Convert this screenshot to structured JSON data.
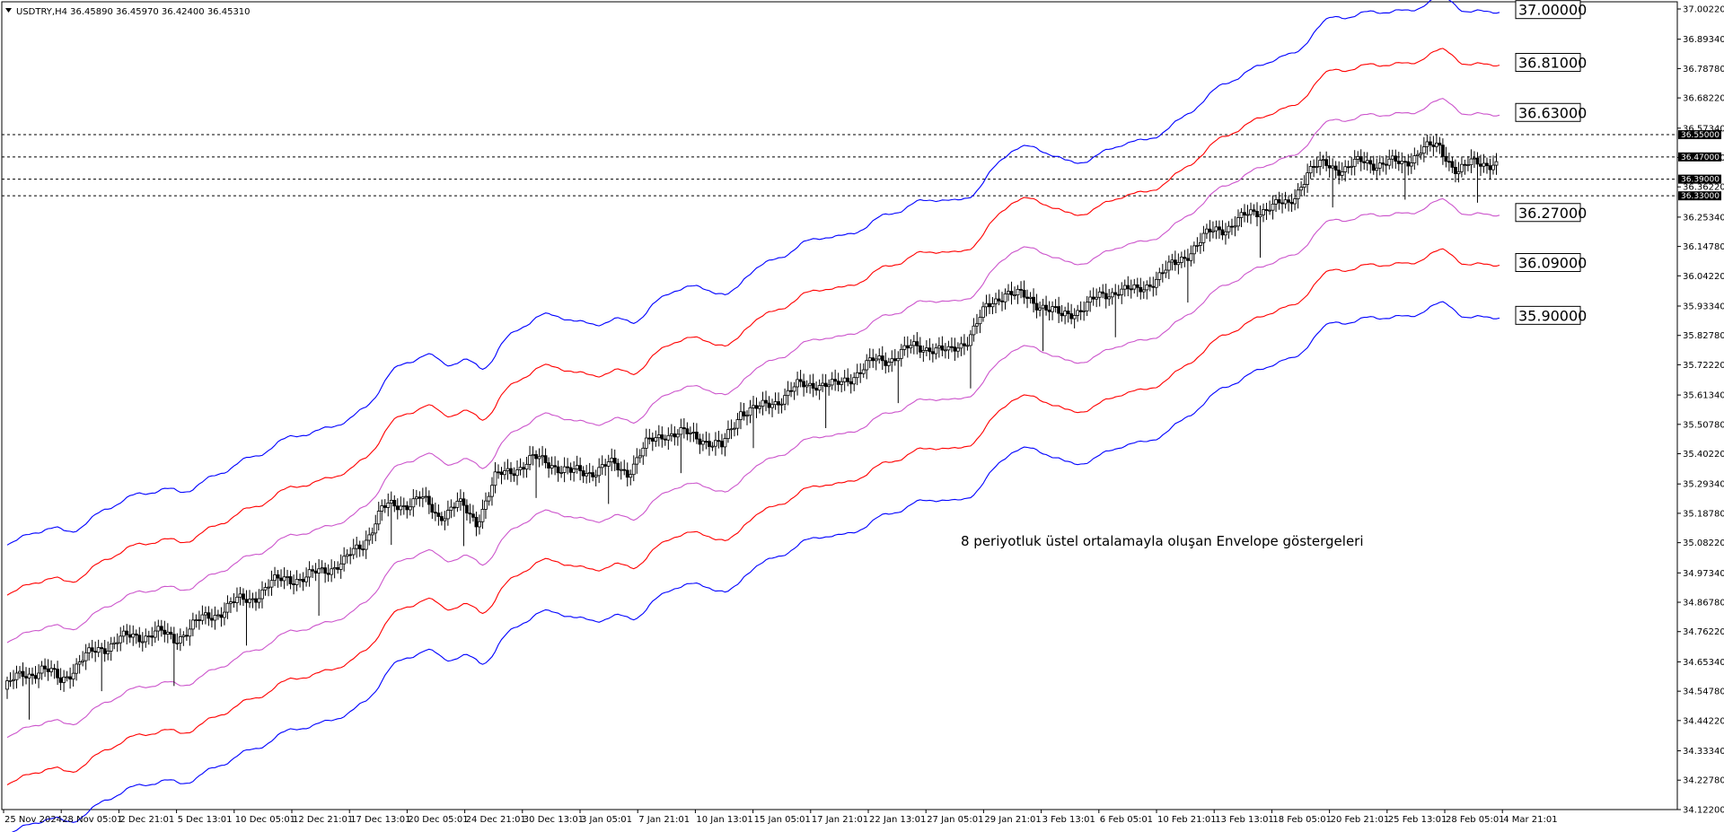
{
  "window": {
    "title": "USDTRY,H4  36.45890 36.45970 36.42400 36.45310"
  },
  "chart_data": {
    "type": "candlestick",
    "symbol": "USDTRY",
    "timeframe": "H4",
    "ylim": [
      34.122,
      37.0022
    ],
    "ytick_labels": [
      "37.00220",
      "36.89340",
      "36.78780",
      "36.68220",
      "36.57340",
      "36.46780",
      "36.36220",
      "36.25340",
      "36.14780",
      "36.04220",
      "35.93340",
      "35.82780",
      "35.72220",
      "35.61340",
      "35.50780",
      "35.40220",
      "35.29340",
      "35.18780",
      "35.08220",
      "34.97340",
      "34.86780",
      "34.76220",
      "34.65340",
      "34.54780",
      "34.44220",
      "34.33340",
      "34.22780",
      "34.12200"
    ],
    "xtick_labels": [
      "25 Nov 2024",
      "28 Nov 05:01",
      "2 Dec 21:01",
      "5 Dec 13:01",
      "10 Dec 05:01",
      "12 Dec 21:01",
      "17 Dec 13:01",
      "20 Dec 05:01",
      "24 Dec 21:01",
      "30 Dec 13:01",
      "3 Jan 05:01",
      "7 Jan 21:01",
      "10 Jan 13:01",
      "15 Jan 05:01",
      "17 Jan 21:01",
      "22 Jan 13:01",
      "27 Jan 05:01",
      "29 Jan 21:01",
      "3 Feb 13:01",
      "6 Feb 05:01",
      "10 Feb 21:01",
      "13 Feb 13:01",
      "18 Feb 05:01",
      "20 Feb 21:01",
      "25 Feb 13:01",
      "28 Feb 05:01",
      "4 Mar 21:01"
    ],
    "close_path": [
      [
        0,
        34.555
      ],
      [
        1,
        34.61
      ],
      [
        2,
        34.625
      ],
      [
        3,
        34.59
      ],
      [
        4,
        34.65
      ],
      [
        5,
        34.7
      ],
      [
        6,
        34.73
      ],
      [
        7,
        34.745
      ],
      [
        8,
        34.76
      ],
      [
        9,
        34.735
      ],
      [
        10,
        34.785
      ],
      [
        11,
        34.82
      ],
      [
        12,
        34.86
      ],
      [
        13,
        34.88
      ],
      [
        14,
        34.925
      ],
      [
        15,
        34.96
      ],
      [
        16,
        34.95
      ],
      [
        17,
        34.99
      ],
      [
        18,
        35.01
      ],
      [
        19,
        35.08
      ],
      [
        20,
        35.2
      ],
      [
        21,
        35.22
      ],
      [
        22,
        35.24
      ],
      [
        23,
        35.18
      ],
      [
        24,
        35.22
      ],
      [
        25,
        35.16
      ],
      [
        26,
        35.31
      ],
      [
        27,
        35.35
      ],
      [
        28,
        35.38
      ],
      [
        29,
        35.37
      ],
      [
        30,
        35.33
      ],
      [
        31,
        35.34
      ],
      [
        32,
        35.36
      ],
      [
        33,
        35.34
      ],
      [
        34,
        35.43
      ],
      [
        35,
        35.48
      ],
      [
        36,
        35.47
      ],
      [
        37,
        35.46
      ],
      [
        38,
        35.42
      ],
      [
        39,
        35.56
      ],
      [
        40,
        35.56
      ],
      [
        41,
        35.6
      ],
      [
        42,
        35.64
      ],
      [
        43,
        35.66
      ],
      [
        44,
        35.64
      ],
      [
        45,
        35.69
      ],
      [
        46,
        35.73
      ],
      [
        47,
        35.75
      ],
      [
        48,
        35.78
      ],
      [
        49,
        35.79
      ],
      [
        50,
        35.76
      ],
      [
        51,
        35.82
      ],
      [
        52,
        35.92
      ],
      [
        53,
        35.99
      ],
      [
        54,
        35.96
      ],
      [
        55,
        35.94
      ],
      [
        56,
        35.89
      ],
      [
        57,
        35.93
      ],
      [
        58,
        35.96
      ],
      [
        59,
        36.0
      ],
      [
        60,
        35.98
      ],
      [
        61,
        36.04
      ],
      [
        62,
        36.08
      ],
      [
        63,
        36.15
      ],
      [
        64,
        36.2
      ],
      [
        65,
        36.23
      ],
      [
        66,
        36.26
      ],
      [
        67,
        36.3
      ],
      [
        68,
        36.29
      ],
      [
        69,
        36.42
      ],
      [
        70,
        36.44
      ],
      [
        71,
        36.43
      ],
      [
        72,
        36.45
      ],
      [
        73,
        36.45
      ],
      [
        74,
        36.44
      ],
      [
        75,
        36.5
      ],
      [
        76,
        36.5
      ],
      [
        77,
        36.42
      ],
      [
        78,
        36.45
      ],
      [
        79,
        36.453
      ]
    ],
    "envelopes": {
      "ma": "EMA 8",
      "lines": [
        {
          "color": "#0000ff",
          "deviation": "+",
          "last": 37.0
        },
        {
          "color": "#ff0000",
          "deviation": "+",
          "last": 36.81
        },
        {
          "color": "#cc55cc",
          "deviation": "+",
          "last": 36.63
        },
        {
          "color": "#cc55cc",
          "deviation": "-",
          "last": 36.27
        },
        {
          "color": "#ff0000",
          "deviation": "-",
          "last": 36.09
        },
        {
          "color": "#0000ff",
          "deviation": "-",
          "last": 35.9
        }
      ]
    },
    "level_labels": [
      {
        "value": 37.0,
        "text": "37.00000",
        "color": "#0000ff"
      },
      {
        "value": 36.81,
        "text": "36.81000",
        "color": "#ff0000"
      },
      {
        "value": 36.63,
        "text": "36.63000",
        "color": "#cc55cc"
      },
      {
        "value": 36.27,
        "text": "36.27000",
        "color": "#cc55cc"
      },
      {
        "value": 36.09,
        "text": "36.09000",
        "color": "#ff0000"
      },
      {
        "value": 35.9,
        "text": "35.90000",
        "color": "#0000ff"
      }
    ],
    "horizontal_lines": [
      {
        "value": 36.55,
        "text": "36.55000"
      },
      {
        "value": 36.47,
        "text": "36.47000"
      },
      {
        "value": 36.39,
        "text": "36.39000"
      },
      {
        "value": 36.33,
        "text": "36.33000"
      }
    ],
    "axis_markers": [
      {
        "value": 36.4531,
        "text": "36.45310"
      },
      {
        "value": 36.3627,
        "text": "36.36270"
      },
      {
        "value": 36.5734,
        "text": "36.57340"
      }
    ],
    "annotation": "8 periyotluk üstel ortalamayla oluşan Envelope göstergeleri",
    "grid": false,
    "legend": "none"
  }
}
